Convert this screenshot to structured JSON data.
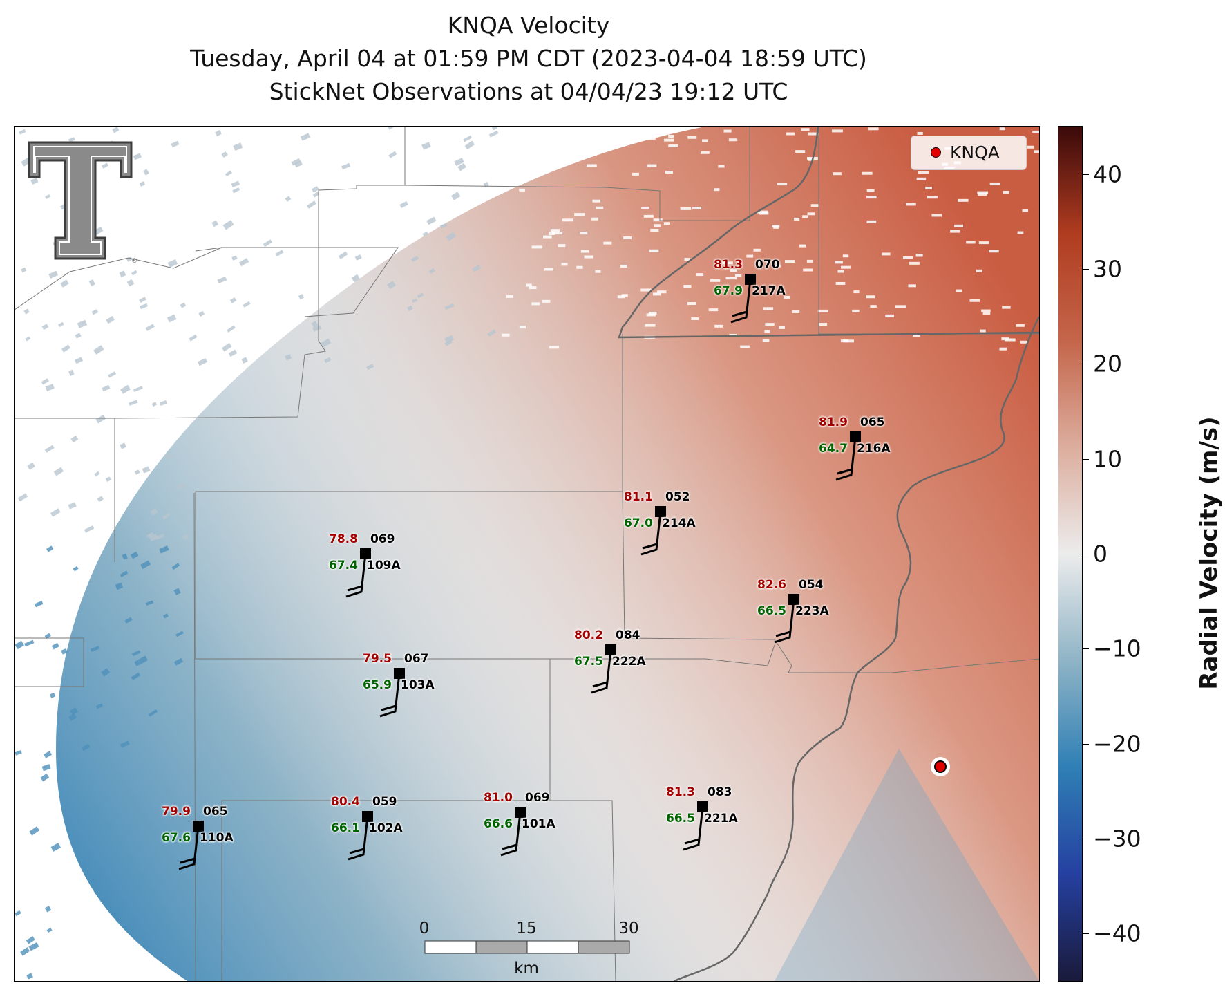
{
  "title": {
    "line1": "KNQA Velocity",
    "line2": "Tuesday, April 04 at 01:59 PM CDT (2023-04-04 18:59 UTC)",
    "line3": "StickNet Observations at 04/04/23 19:12 UTC"
  },
  "legend": {
    "label": "KNQA",
    "marker_color": "#e00000"
  },
  "colorbar": {
    "label": "Radial Velocity (m/s)",
    "range": [
      -45,
      45
    ],
    "ticks": [
      "40",
      "30",
      "20",
      "10",
      "0",
      "−10",
      "−20",
      "−30",
      "−40"
    ],
    "tick_values": [
      40,
      30,
      20,
      10,
      0,
      -10,
      -20,
      -30,
      -40
    ],
    "colors": [
      "#1a1a3a",
      "#2540a0",
      "#2f7fb5",
      "#8fb4c6",
      "#ececec",
      "#dcad9d",
      "#c4654a",
      "#b03c20",
      "#3a0a0a"
    ]
  },
  "scale_bar": {
    "labels": [
      "0",
      "15",
      "30"
    ],
    "unit": "km"
  },
  "stations": [
    {
      "id": "217A",
      "temp": "81.3",
      "dew": "67.9",
      "dir": "070"
    },
    {
      "id": "216A",
      "temp": "81.9",
      "dew": "64.7",
      "dir": "065"
    },
    {
      "id": "214A",
      "temp": "81.1",
      "dew": "67.0",
      "dir": "052"
    },
    {
      "id": "109A",
      "temp": "78.8",
      "dew": "67.4",
      "dir": "069"
    },
    {
      "id": "223A",
      "temp": "82.6",
      "dew": "66.5",
      "dir": "054"
    },
    {
      "id": "222A",
      "temp": "80.2",
      "dew": "67.5",
      "dir": "084"
    },
    {
      "id": "103A",
      "temp": "79.5",
      "dew": "65.9",
      "dir": "067"
    },
    {
      "id": "110A",
      "temp": "79.9",
      "dew": "67.6",
      "dir": "065"
    },
    {
      "id": "102A",
      "temp": "80.4",
      "dew": "66.1",
      "dir": "059"
    },
    {
      "id": "101A",
      "temp": "81.0",
      "dew": "66.6",
      "dir": "069"
    },
    {
      "id": "221A",
      "temp": "81.3",
      "dew": "66.5",
      "dir": "083"
    }
  ]
}
